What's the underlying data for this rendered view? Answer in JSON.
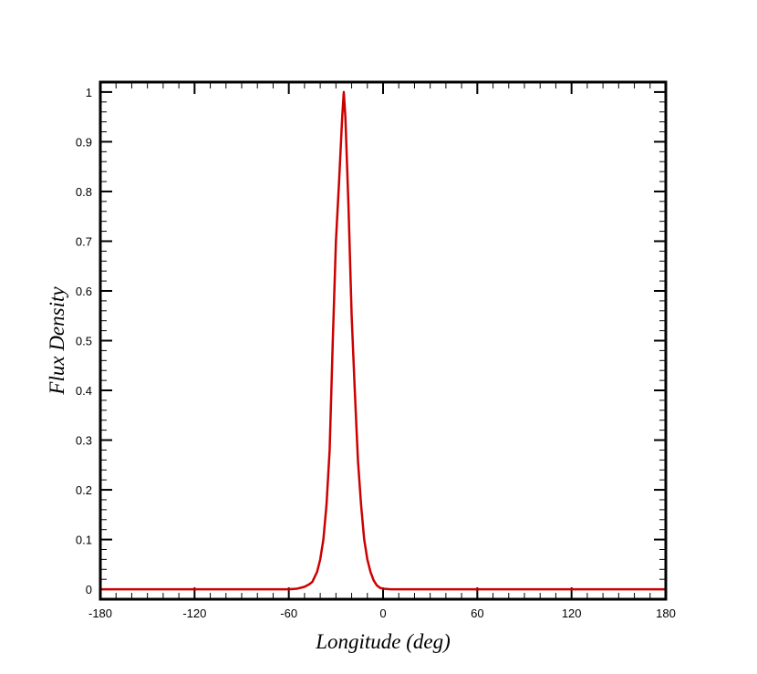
{
  "chart_data": {
    "type": "line",
    "title": "",
    "xlabel": "Longitude (deg)",
    "ylabel": "Flux Density",
    "xlim": [
      -180,
      180
    ],
    "ylim": [
      -0.02,
      1.02
    ],
    "xticks": [
      -180,
      -120,
      -60,
      0,
      60,
      120,
      180
    ],
    "xtick_labels": [
      "-180",
      "-120",
      "-60",
      "0",
      "60",
      "120",
      "180"
    ],
    "yticks": [
      0,
      0.1,
      0.2,
      0.3,
      0.4,
      0.5,
      0.6,
      0.7,
      0.8,
      0.9,
      1
    ],
    "ytick_labels": [
      "0",
      "0.1",
      "0.2",
      "0.3",
      "0.4",
      "0.5",
      "0.6",
      "0.7",
      "0.8",
      "0.9",
      "1"
    ],
    "grid": false,
    "legend": "none",
    "series": [
      {
        "color": "#cc0000",
        "x": [
          -180,
          -60,
          -55,
          -50,
          -47,
          -45,
          -42,
          -40,
          -38,
          -36,
          -34,
          -32,
          -30,
          -28,
          -26,
          -25,
          -24,
          -22,
          -20,
          -18,
          -16,
          -14,
          -12,
          -10,
          -8,
          -6,
          -4,
          -2,
          0,
          5,
          10,
          180
        ],
        "y": [
          0,
          0,
          0.001,
          0.005,
          0.01,
          0.015,
          0.035,
          0.06,
          0.1,
          0.17,
          0.28,
          0.5,
          0.7,
          0.82,
          0.95,
          1.0,
          0.95,
          0.77,
          0.55,
          0.4,
          0.26,
          0.17,
          0.1,
          0.06,
          0.035,
          0.018,
          0.008,
          0.003,
          0.001,
          0,
          0,
          0
        ]
      }
    ]
  }
}
